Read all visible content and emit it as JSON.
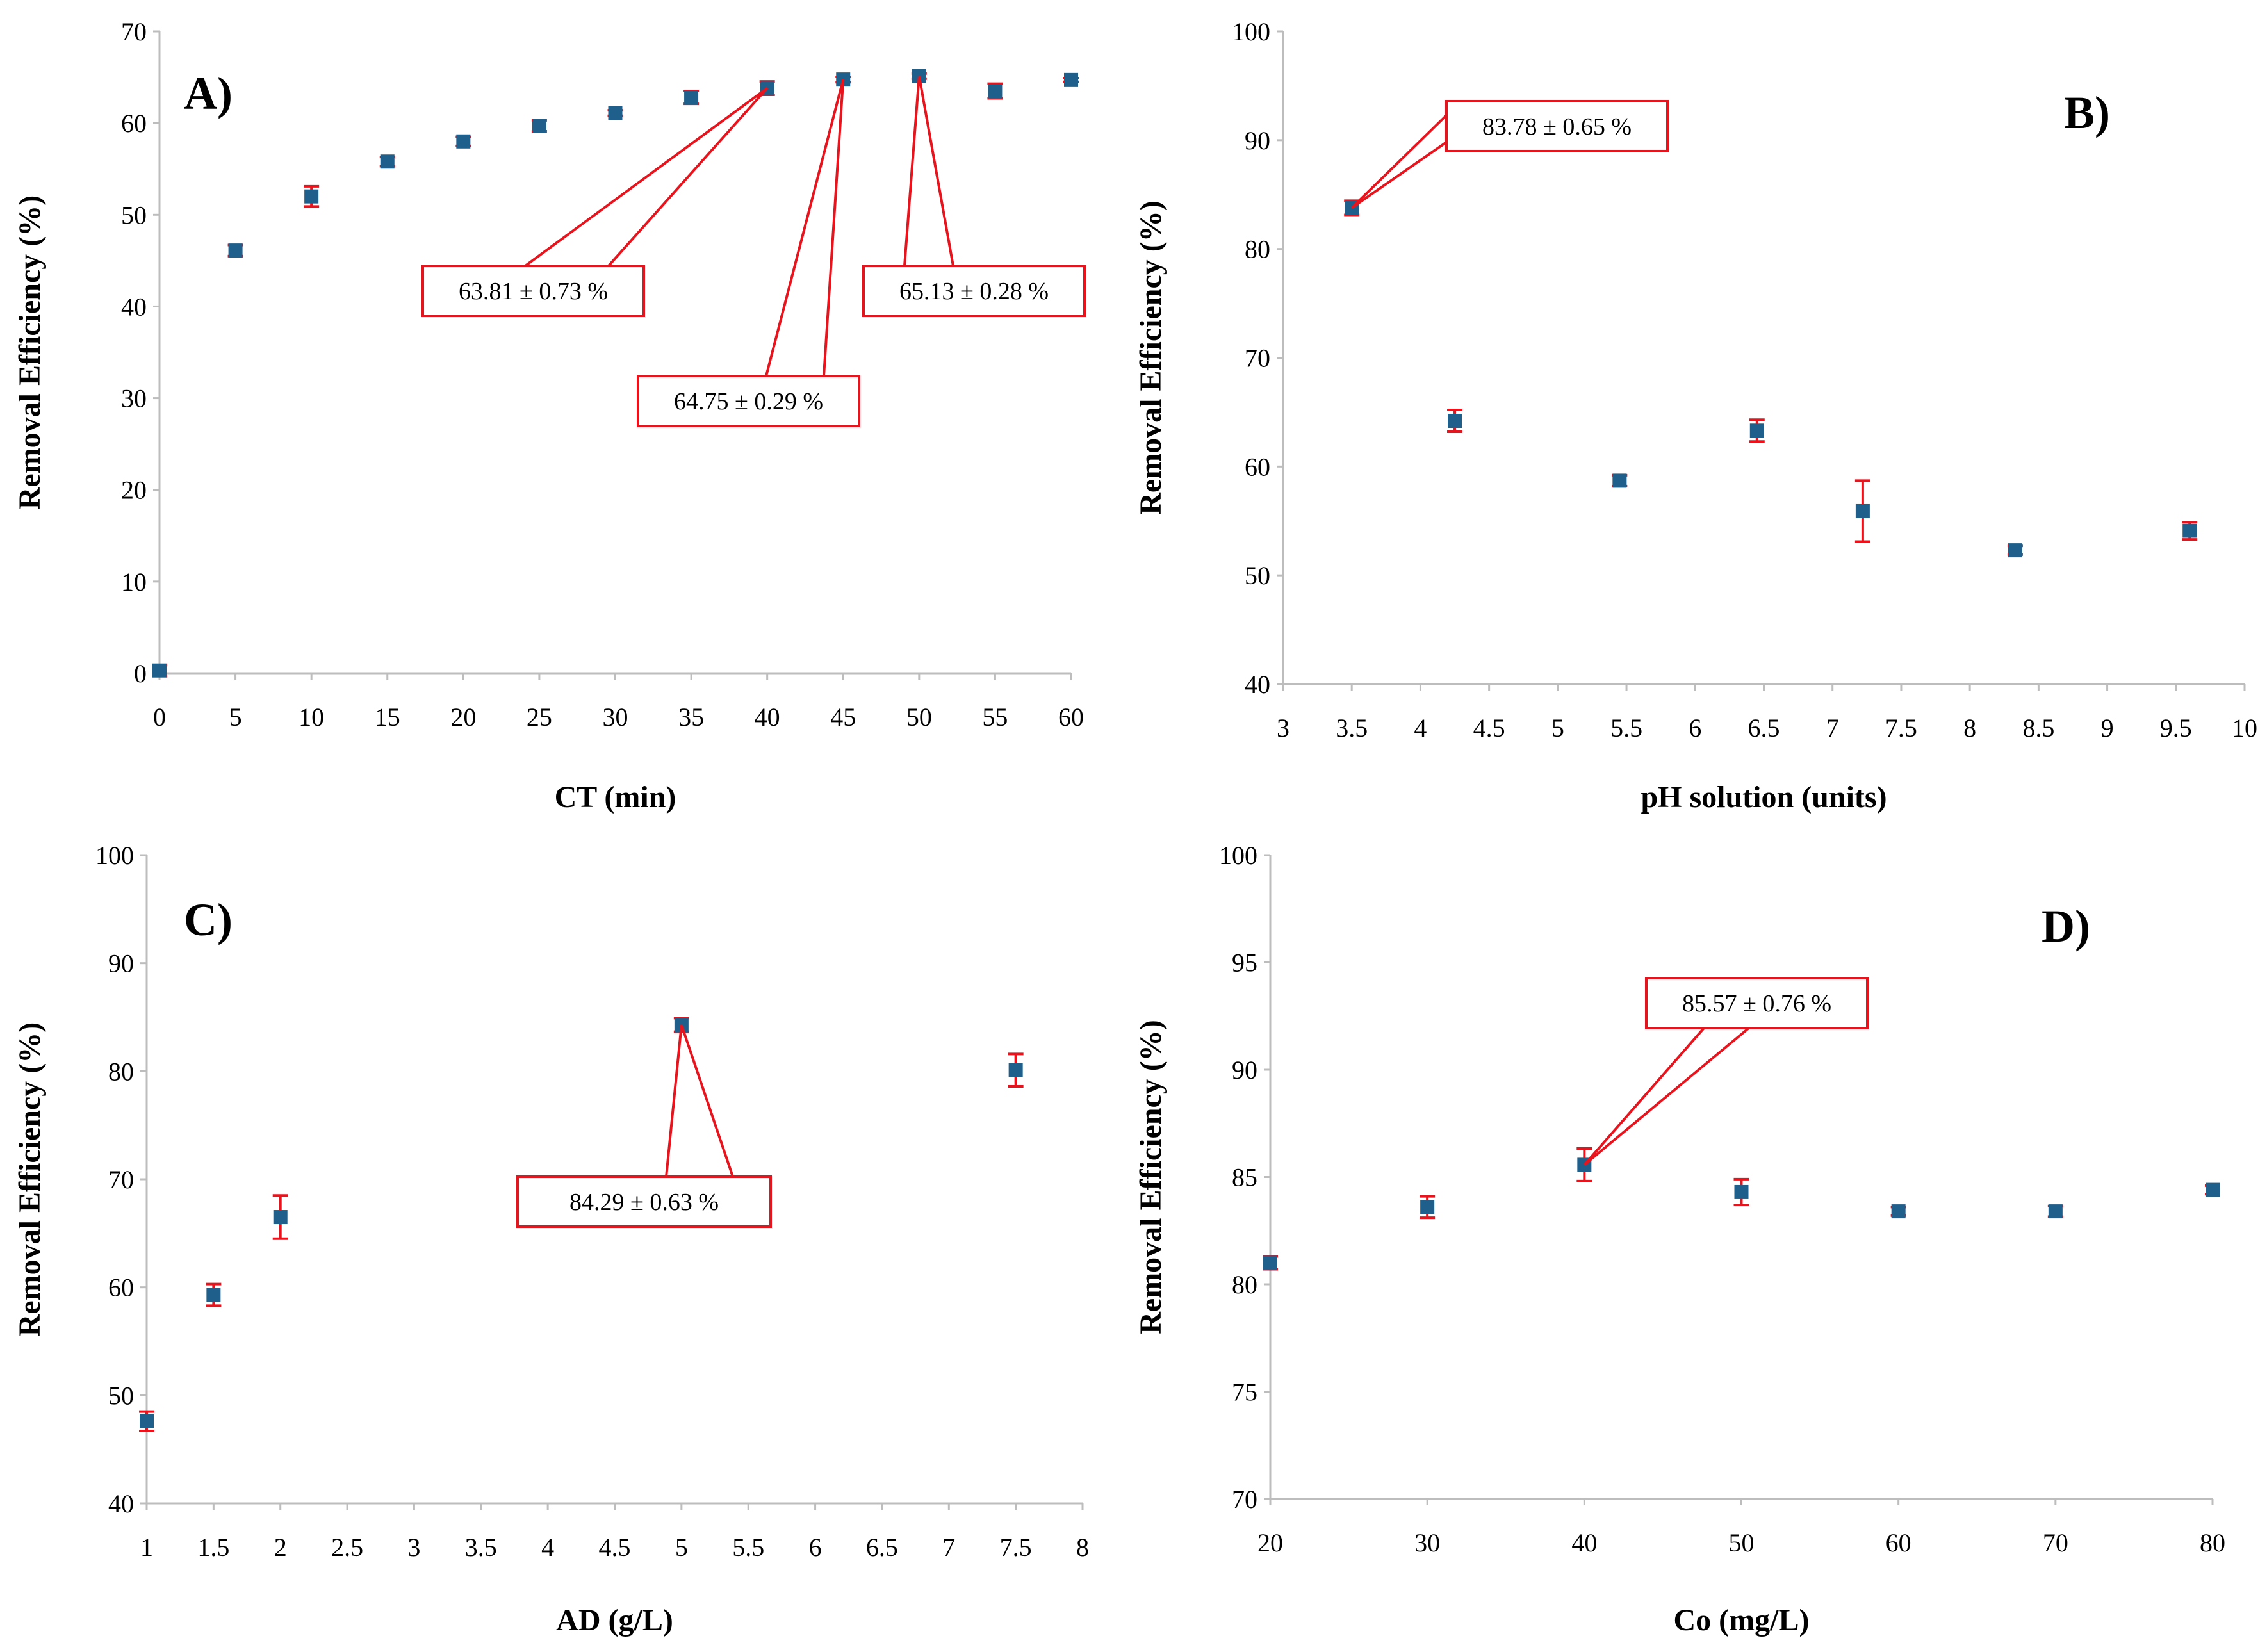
{
  "chart_data": [
    {
      "type": "scatter",
      "panel_label": "A)",
      "xlabel": "CT (min)",
      "ylabel": "Removal Efficiency (%)",
      "xlim": [
        0,
        60
      ],
      "ylim": [
        0,
        70
      ],
      "xticks": [
        0,
        5,
        10,
        15,
        20,
        25,
        30,
        35,
        40,
        45,
        50,
        55,
        60
      ],
      "yticks": [
        0,
        10,
        20,
        30,
        40,
        50,
        60,
        70
      ],
      "points": [
        {
          "x": 0,
          "y": 0.3,
          "err": 0.6
        },
        {
          "x": 5,
          "y": 46.1,
          "err": 0.6
        },
        {
          "x": 10,
          "y": 52.0,
          "err": 1.1
        },
        {
          "x": 15,
          "y": 55.8,
          "err": 0.5
        },
        {
          "x": 20,
          "y": 58.0,
          "err": 0.5
        },
        {
          "x": 25,
          "y": 59.7,
          "err": 0.6
        },
        {
          "x": 30,
          "y": 61.1,
          "err": 0.3
        },
        {
          "x": 35,
          "y": 62.8,
          "err": 0.7
        },
        {
          "x": 40,
          "y": 63.81,
          "err": 0.73
        },
        {
          "x": 45,
          "y": 64.75,
          "err": 0.29
        },
        {
          "x": 50,
          "y": 65.13,
          "err": 0.28
        },
        {
          "x": 55,
          "y": 63.5,
          "err": 0.8
        },
        {
          "x": 60,
          "y": 64.7,
          "err": 0.2
        }
      ],
      "annotations": [
        {
          "text": "63.81 ± 0.73 %",
          "x": 40,
          "y": 63.81
        },
        {
          "text": "64.75 ± 0.29 %",
          "x": 45,
          "y": 64.75
        },
        {
          "text": "65.13 ± 0.28 %",
          "x": 50,
          "y": 65.13
        }
      ]
    },
    {
      "type": "scatter",
      "panel_label": "B)",
      "xlabel": "pH solution (units)",
      "ylabel": "Removal Efficiency (%)",
      "xlim": [
        3,
        10
      ],
      "ylim": [
        40,
        100
      ],
      "xticks": [
        3,
        3.5,
        4,
        4.5,
        5,
        5.5,
        6,
        6.5,
        7,
        7.5,
        8,
        8.5,
        9,
        9.5,
        10
      ],
      "yticks": [
        40,
        50,
        60,
        70,
        80,
        90,
        100
      ],
      "points": [
        {
          "x": 3.5,
          "y": 83.78,
          "err": 0.65
        },
        {
          "x": 4.25,
          "y": 64.2,
          "err": 1.0
        },
        {
          "x": 5.45,
          "y": 58.7,
          "err": 0.5
        },
        {
          "x": 6.45,
          "y": 63.3,
          "err": 1.0
        },
        {
          "x": 7.22,
          "y": 55.9,
          "err": 2.8
        },
        {
          "x": 8.33,
          "y": 52.3,
          "err": 0.4
        },
        {
          "x": 9.6,
          "y": 54.1,
          "err": 0.8
        }
      ],
      "annotations": [
        {
          "text": "83.78 ± 0.65 %",
          "x": 3.5,
          "y": 83.78
        }
      ]
    },
    {
      "type": "scatter",
      "panel_label": "C)",
      "xlabel": "AD (g/L)",
      "ylabel": "Removal Efficiency (%)",
      "xlim": [
        1,
        8
      ],
      "ylim": [
        40,
        100
      ],
      "xticks": [
        1,
        1.5,
        2,
        2.5,
        3,
        3.5,
        4,
        4.5,
        5,
        5.5,
        6,
        6.5,
        7,
        7.5,
        8
      ],
      "yticks": [
        40,
        50,
        60,
        70,
        80,
        90,
        100
      ],
      "points": [
        {
          "x": 1,
          "y": 47.6,
          "err": 0.9
        },
        {
          "x": 1.5,
          "y": 59.3,
          "err": 1.0
        },
        {
          "x": 2,
          "y": 66.5,
          "err": 2.0
        },
        {
          "x": 5,
          "y": 84.29,
          "err": 0.63
        },
        {
          "x": 7.5,
          "y": 80.1,
          "err": 1.5
        }
      ],
      "annotations": [
        {
          "text": "84.29 ± 0.63 %",
          "x": 5,
          "y": 84.29
        }
      ]
    },
    {
      "type": "scatter",
      "panel_label": "D)",
      "xlabel": "Co (mg/L)",
      "ylabel": "Removal Efficiency (%)",
      "xlim": [
        20,
        80
      ],
      "ylim": [
        70,
        100
      ],
      "xticks": [
        20,
        30,
        40,
        50,
        60,
        70,
        80
      ],
      "yticks": [
        70,
        75,
        80,
        85,
        90,
        95,
        100
      ],
      "points": [
        {
          "x": 20,
          "y": 81.0,
          "err": 0.3
        },
        {
          "x": 30,
          "y": 83.6,
          "err": 0.5
        },
        {
          "x": 40,
          "y": 85.57,
          "err": 0.76
        },
        {
          "x": 50,
          "y": 84.3,
          "err": 0.6
        },
        {
          "x": 60,
          "y": 83.4,
          "err": 0.2
        },
        {
          "x": 70,
          "y": 83.4,
          "err": 0.25
        },
        {
          "x": 80,
          "y": 84.4,
          "err": 0.2
        }
      ],
      "annotations": [
        {
          "text": "85.57 ± 0.76 %",
          "x": 40,
          "y": 85.57
        }
      ]
    }
  ],
  "colors": {
    "marker": "#1f5f8b",
    "error_bar": "#e8141d",
    "callout": "#e8141d",
    "axis": "#bdbdbd"
  }
}
